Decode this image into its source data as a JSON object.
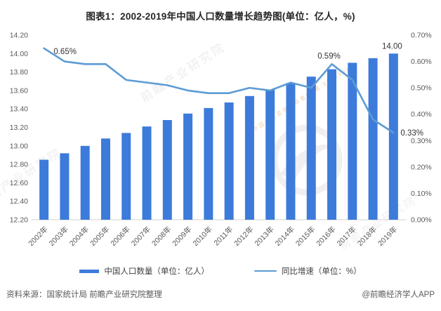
{
  "title": "图表1：2002-2019年中国人口数量增长趋势图(单位：亿人，%)",
  "chart_data": {
    "type": "bar",
    "title": "图表1：2002-2019年中国人口数量增长趋势图(单位：亿人，%)",
    "categories": [
      "2002年",
      "2003年",
      "2004年",
      "2005年",
      "2006年",
      "2007年",
      "2008年",
      "2009年",
      "2010年",
      "2011年",
      "2012年",
      "2013年",
      "2014年",
      "2015年",
      "2016年",
      "2017年",
      "2018年",
      "2019年"
    ],
    "series": [
      {
        "name": "中国人口数量（单位：亿人）",
        "type": "bar",
        "axis": "left",
        "color": "#3D7BDB",
        "values": [
          12.85,
          12.92,
          13.0,
          13.08,
          13.14,
          13.21,
          13.28,
          13.35,
          13.41,
          13.47,
          13.54,
          13.61,
          13.68,
          13.75,
          13.83,
          13.9,
          13.95,
          14.0
        ]
      },
      {
        "name": "同比增速（单位：%）",
        "type": "line",
        "axis": "right",
        "color": "#5B9BD5",
        "values": [
          0.65,
          0.6,
          0.59,
          0.59,
          0.53,
          0.52,
          0.51,
          0.49,
          0.48,
          0.48,
          0.5,
          0.49,
          0.52,
          0.5,
          0.59,
          0.53,
          0.38,
          0.33
        ]
      }
    ],
    "left_axis": {
      "min": 12.2,
      "max": 14.2,
      "step": 0.2,
      "ticks": [
        "12.20",
        "12.40",
        "12.60",
        "12.80",
        "13.00",
        "13.20",
        "13.40",
        "13.60",
        "13.80",
        "14.00",
        "14.20"
      ]
    },
    "right_axis": {
      "min": 0.0,
      "max": 0.7,
      "step": 0.1,
      "ticks": [
        "0.00%",
        "0.10%",
        "0.20%",
        "0.30%",
        "0.40%",
        "0.50%",
        "0.60%",
        "0.70%"
      ]
    },
    "grid": false,
    "legend_position": "bottom",
    "point_labels": [
      {
        "series": 1,
        "index": 0,
        "text": "0.65%"
      },
      {
        "series": 1,
        "index": 14,
        "text": "0.59%"
      },
      {
        "series": 0,
        "index": 17,
        "text": "14.00"
      },
      {
        "series": 1,
        "index": 17,
        "text": "0.33%"
      }
    ]
  },
  "footer": {
    "source": "资料来源：国家统计局 前瞻产业研究院整理",
    "credit": "@前瞻经济学人APP"
  },
  "watermark": {
    "text": "前瞻产业研究院",
    "subtext": "中国产业咨询领导者(股票:839599)"
  },
  "colors": {
    "bar": "#3D7BDB",
    "line": "#5B9BD5",
    "axis_text": "#595959",
    "baseline": "#D9D9D9",
    "data_label": "#333333"
  }
}
